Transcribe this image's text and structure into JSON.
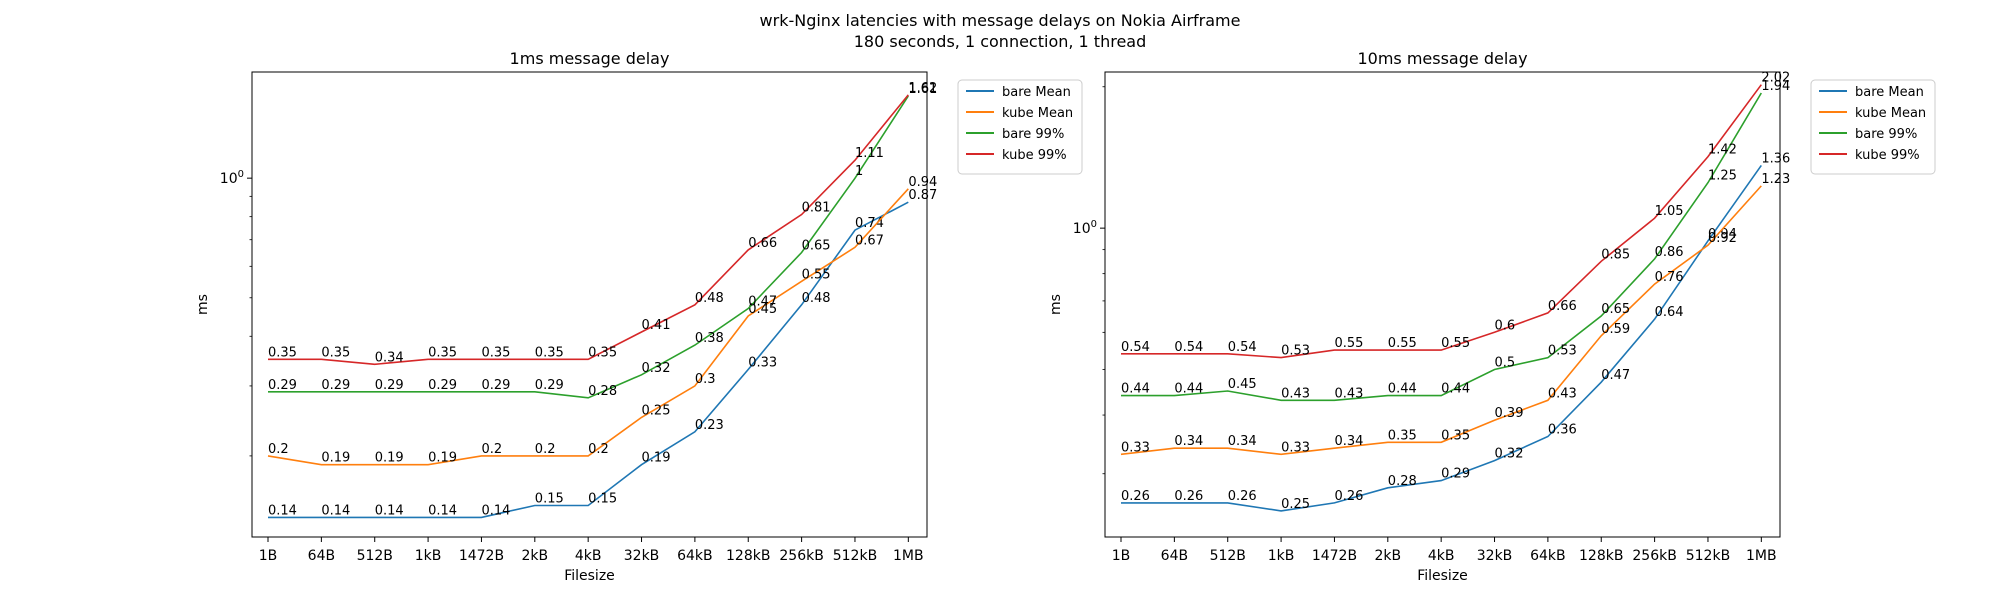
{
  "figure": {
    "suptitle_line1": "wrk-Nginx latencies with message delays on Nokia Airframe",
    "suptitle_line2": "180 seconds, 1 connection, 1 thread"
  },
  "chart_data": [
    {
      "type": "line",
      "title": "1ms message delay",
      "xlabel": "Filesize",
      "ylabel": "ms",
      "yscale": "log",
      "ylim": [
        0.125,
        1.85
      ],
      "yticks": [
        {
          "value": 1.0,
          "label": "10^0"
        }
      ],
      "grid": false,
      "legend_position": "outside-top-right",
      "categories": [
        "1B",
        "64B",
        "512B",
        "1kB",
        "1472B",
        "2kB",
        "4kB",
        "32kB",
        "64kB",
        "128kB",
        "256kB",
        "512kB",
        "1MB"
      ],
      "series": [
        {
          "name": "bare Mean",
          "color": "#1f77b4",
          "values": [
            0.14,
            0.14,
            0.14,
            0.14,
            0.14,
            0.15,
            0.15,
            0.19,
            0.23,
            0.33,
            0.48,
            0.74,
            0.87
          ]
        },
        {
          "name": "kube Mean",
          "color": "#ff7f0e",
          "values": [
            0.2,
            0.19,
            0.19,
            0.19,
            0.2,
            0.2,
            0.2,
            0.25,
            0.3,
            0.45,
            0.55,
            0.67,
            0.94
          ]
        },
        {
          "name": "bare 99%",
          "color": "#2ca02c",
          "values": [
            0.29,
            0.29,
            0.29,
            0.29,
            0.29,
            0.29,
            0.28,
            0.32,
            0.38,
            0.47,
            0.65,
            1.0,
            1.61
          ]
        },
        {
          "name": "kube 99%",
          "color": "#d62728",
          "values": [
            0.35,
            0.35,
            0.34,
            0.35,
            0.35,
            0.35,
            0.35,
            0.41,
            0.48,
            0.66,
            0.81,
            1.11,
            1.62
          ]
        }
      ]
    },
    {
      "type": "line",
      "title": "10ms message delay",
      "xlabel": "Filesize",
      "ylabel": "ms",
      "yscale": "log",
      "ylim": [
        0.22,
        2.15
      ],
      "yticks": [
        {
          "value": 1.0,
          "label": "10^0"
        }
      ],
      "grid": false,
      "legend_position": "outside-top-right",
      "categories": [
        "1B",
        "64B",
        "512B",
        "1kB",
        "1472B",
        "2kB",
        "4kB",
        "32kB",
        "64kB",
        "128kB",
        "256kB",
        "512kB",
        "1MB"
      ],
      "series": [
        {
          "name": "bare Mean",
          "color": "#1f77b4",
          "values": [
            0.26,
            0.26,
            0.26,
            0.25,
            0.26,
            0.28,
            0.29,
            0.32,
            0.36,
            0.47,
            0.64,
            0.94,
            1.36
          ]
        },
        {
          "name": "kube Mean",
          "color": "#ff7f0e",
          "values": [
            0.33,
            0.34,
            0.34,
            0.33,
            0.34,
            0.35,
            0.35,
            0.39,
            0.43,
            0.59,
            0.76,
            0.92,
            1.23
          ]
        },
        {
          "name": "bare 99%",
          "color": "#2ca02c",
          "values": [
            0.44,
            0.44,
            0.45,
            0.43,
            0.43,
            0.44,
            0.44,
            0.5,
            0.53,
            0.65,
            0.86,
            1.25,
            1.94
          ]
        },
        {
          "name": "kube 99%",
          "color": "#d62728",
          "values": [
            0.54,
            0.54,
            0.54,
            0.53,
            0.55,
            0.55,
            0.55,
            0.6,
            0.66,
            0.85,
            1.05,
            1.42,
            2.02
          ]
        }
      ]
    }
  ]
}
